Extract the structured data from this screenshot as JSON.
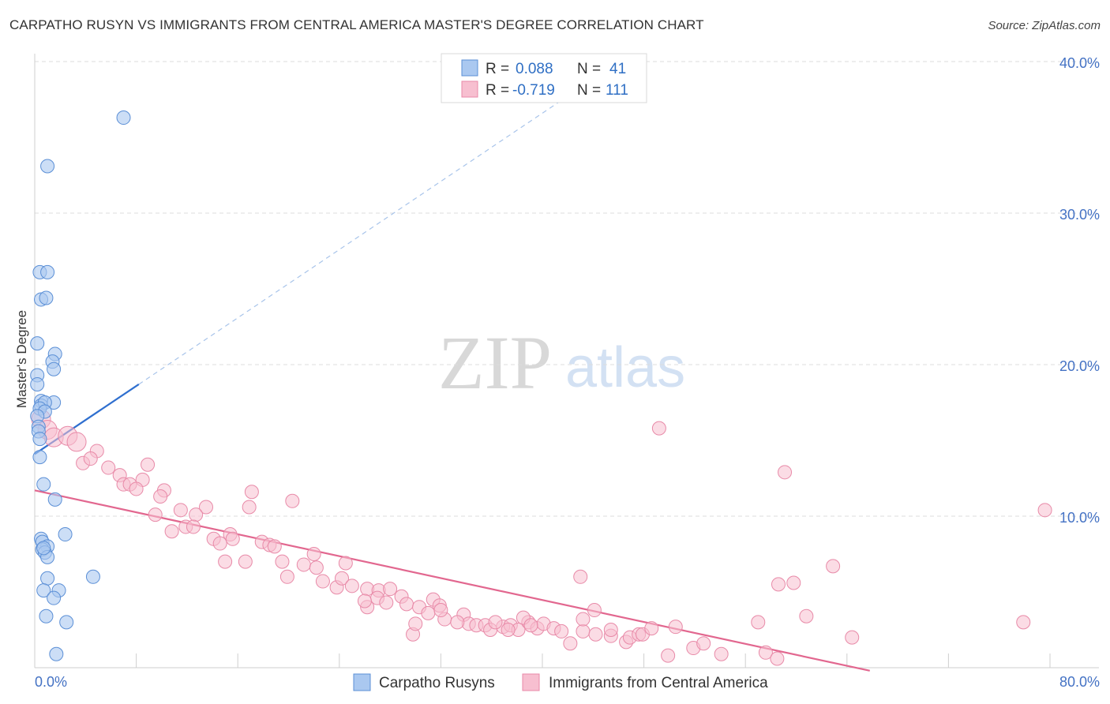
{
  "header": {
    "title": "CARPATHO RUSYN VS IMMIGRANTS FROM CENTRAL AMERICA MASTER'S DEGREE CORRELATION CHART",
    "source": "Source: ZipAtlas.com"
  },
  "watermark": {
    "zip": "ZIP",
    "atlas": "atlas"
  },
  "colors": {
    "blue_fill": "#aac8f0",
    "blue_stroke": "#5b8fd6",
    "blue_line": "#2f6fcf",
    "pink_fill": "#f7bfd0",
    "pink_stroke": "#e88aa8",
    "pink_line": "#e2678f",
    "tick_text": "#4472c4",
    "grid": "#dddddd"
  },
  "legend": {
    "rows": [
      {
        "r_label": "R =",
        "r_value": "0.088",
        "n_label": "N =",
        "n_value": "41"
      },
      {
        "r_label": "R =",
        "r_value": "-0.719",
        "n_label": "N =",
        "n_value": "111"
      }
    ]
  },
  "bottom_legend": {
    "items": [
      {
        "label": "Carpatho Rusyns"
      },
      {
        "label": "Immigrants from Central America"
      }
    ]
  },
  "chart_data": {
    "type": "scatter",
    "title": "CARPATHO RUSYN VS IMMIGRANTS FROM CENTRAL AMERICA MASTER'S DEGREE CORRELATION CHART",
    "xlabel": "",
    "ylabel": "Master's Degree",
    "xlim": [
      0,
      80
    ],
    "ylim": [
      0,
      40
    ],
    "x_tick_labels": [
      {
        "value": 0,
        "label": "0.0%"
      },
      {
        "value": 80,
        "label": "80.0%"
      }
    ],
    "y_tick_labels": [
      {
        "value": 10,
        "label": "10.0%"
      },
      {
        "value": 20,
        "label": "20.0%"
      },
      {
        "value": 30,
        "label": "30.0%"
      },
      {
        "value": 40,
        "label": "40.0%"
      }
    ],
    "grid": true,
    "legend_position": "top-center",
    "series": [
      {
        "name": "Carpatho Rusyns",
        "color": "#aac8f0",
        "points": [
          [
            7.0,
            36.3
          ],
          [
            1.0,
            33.1
          ],
          [
            0.4,
            26.1
          ],
          [
            1.0,
            26.1
          ],
          [
            0.5,
            24.3
          ],
          [
            0.9,
            24.4
          ],
          [
            0.2,
            21.4
          ],
          [
            1.6,
            20.7
          ],
          [
            1.4,
            20.2
          ],
          [
            1.5,
            19.7
          ],
          [
            0.2,
            19.3
          ],
          [
            0.2,
            18.7
          ],
          [
            0.5,
            17.6
          ],
          [
            0.5,
            17.3
          ],
          [
            1.5,
            17.5
          ],
          [
            0.8,
            17.5
          ],
          [
            0.4,
            17.1
          ],
          [
            0.8,
            16.9
          ],
          [
            0.2,
            16.6
          ],
          [
            0.3,
            15.9
          ],
          [
            0.3,
            15.6
          ],
          [
            0.4,
            15.1
          ],
          [
            0.4,
            13.9
          ],
          [
            0.7,
            12.1
          ],
          [
            1.6,
            11.1
          ],
          [
            0.5,
            8.5
          ],
          [
            2.4,
            8.8
          ],
          [
            0.6,
            8.3
          ],
          [
            1.0,
            8.0
          ],
          [
            0.6,
            7.8
          ],
          [
            0.8,
            7.6
          ],
          [
            1.0,
            7.3
          ],
          [
            4.6,
            6.0
          ],
          [
            1.0,
            5.9
          ],
          [
            1.9,
            5.1
          ],
          [
            0.7,
            5.1
          ],
          [
            1.5,
            4.6
          ],
          [
            0.9,
            3.4
          ],
          [
            2.5,
            3.0
          ],
          [
            1.7,
            0.9
          ],
          [
            0.7,
            7.9
          ]
        ],
        "trend": {
          "x": [
            0.0,
            8.2
          ],
          "y": [
            14.1,
            18.7
          ],
          "extended_to": [
            42.5,
            38.0
          ]
        }
      },
      {
        "name": "Immigrants from Central America",
        "color": "#f7bfd0",
        "points": [
          [
            0.5,
            16.4
          ],
          [
            1.0,
            15.7
          ],
          [
            1.5,
            15.2
          ],
          [
            2.6,
            15.3
          ],
          [
            3.3,
            14.9
          ],
          [
            4.9,
            14.3
          ],
          [
            3.8,
            13.5
          ],
          [
            4.4,
            13.8
          ],
          [
            8.9,
            13.4
          ],
          [
            5.8,
            13.2
          ],
          [
            6.7,
            12.7
          ],
          [
            7.0,
            12.1
          ],
          [
            8.5,
            12.4
          ],
          [
            7.5,
            12.1
          ],
          [
            8.0,
            11.8
          ],
          [
            10.2,
            11.7
          ],
          [
            9.9,
            11.3
          ],
          [
            17.1,
            11.6
          ],
          [
            20.3,
            11.0
          ],
          [
            11.5,
            10.4
          ],
          [
            13.5,
            10.6
          ],
          [
            16.9,
            10.6
          ],
          [
            9.5,
            10.1
          ],
          [
            12.7,
            10.1
          ],
          [
            10.8,
            9.0
          ],
          [
            11.9,
            9.3
          ],
          [
            12.5,
            9.3
          ],
          [
            15.4,
            8.8
          ],
          [
            14.1,
            8.5
          ],
          [
            14.6,
            8.2
          ],
          [
            15.6,
            8.5
          ],
          [
            17.9,
            8.3
          ],
          [
            18.5,
            8.1
          ],
          [
            18.9,
            8.0
          ],
          [
            15.0,
            7.0
          ],
          [
            16.6,
            7.0
          ],
          [
            19.5,
            7.0
          ],
          [
            21.2,
            6.8
          ],
          [
            22.0,
            7.5
          ],
          [
            22.2,
            6.6
          ],
          [
            24.5,
            6.9
          ],
          [
            19.9,
            6.0
          ],
          [
            22.7,
            5.7
          ],
          [
            23.8,
            5.3
          ],
          [
            24.2,
            5.9
          ],
          [
            25.0,
            5.4
          ],
          [
            26.2,
            5.2
          ],
          [
            27.1,
            5.1
          ],
          [
            28.0,
            5.2
          ],
          [
            28.9,
            4.7
          ],
          [
            29.3,
            4.2
          ],
          [
            27.0,
            4.6
          ],
          [
            26.2,
            4.0
          ],
          [
            27.7,
            4.3
          ],
          [
            30.3,
            4.0
          ],
          [
            31.4,
            4.5
          ],
          [
            31.9,
            4.1
          ],
          [
            32.3,
            3.2
          ],
          [
            31.0,
            3.6
          ],
          [
            32.0,
            3.8
          ],
          [
            33.8,
            3.5
          ],
          [
            34.2,
            2.9
          ],
          [
            34.8,
            2.8
          ],
          [
            35.5,
            2.8
          ],
          [
            35.9,
            2.5
          ],
          [
            36.9,
            2.7
          ],
          [
            37.5,
            2.8
          ],
          [
            38.1,
            2.5
          ],
          [
            38.9,
            3.0
          ],
          [
            38.5,
            3.3
          ],
          [
            39.6,
            2.6
          ],
          [
            40.1,
            2.9
          ],
          [
            40.9,
            2.6
          ],
          [
            41.5,
            2.4
          ],
          [
            42.2,
            1.6
          ],
          [
            43.2,
            2.4
          ],
          [
            43.2,
            3.2
          ],
          [
            44.2,
            2.2
          ],
          [
            45.4,
            2.1
          ],
          [
            45.4,
            2.5
          ],
          [
            46.6,
            1.7
          ],
          [
            46.9,
            2.0
          ],
          [
            47.6,
            2.2
          ],
          [
            47.9,
            2.2
          ],
          [
            48.6,
            2.6
          ],
          [
            49.9,
            0.8
          ],
          [
            50.5,
            2.7
          ],
          [
            49.2,
            15.8
          ],
          [
            51.9,
            1.3
          ],
          [
            52.7,
            1.6
          ],
          [
            54.1,
            0.9
          ],
          [
            57.0,
            3.0
          ],
          [
            57.6,
            1.0
          ],
          [
            58.5,
            0.6
          ],
          [
            59.1,
            12.9
          ],
          [
            58.6,
            5.5
          ],
          [
            59.8,
            5.6
          ],
          [
            60.8,
            3.4
          ],
          [
            62.9,
            6.7
          ],
          [
            64.4,
            2.0
          ],
          [
            77.9,
            3.0
          ],
          [
            79.6,
            10.4
          ],
          [
            43.0,
            6.0
          ],
          [
            44.1,
            3.8
          ],
          [
            33.3,
            3.0
          ],
          [
            36.3,
            3.0
          ],
          [
            29.8,
            2.2
          ],
          [
            37.3,
            2.5
          ],
          [
            39.1,
            2.8
          ],
          [
            26.0,
            4.4
          ],
          [
            30.0,
            2.9
          ]
        ],
        "trend": {
          "x": [
            0.0,
            65.8
          ],
          "y": [
            11.7,
            -0.2
          ]
        }
      }
    ]
  }
}
